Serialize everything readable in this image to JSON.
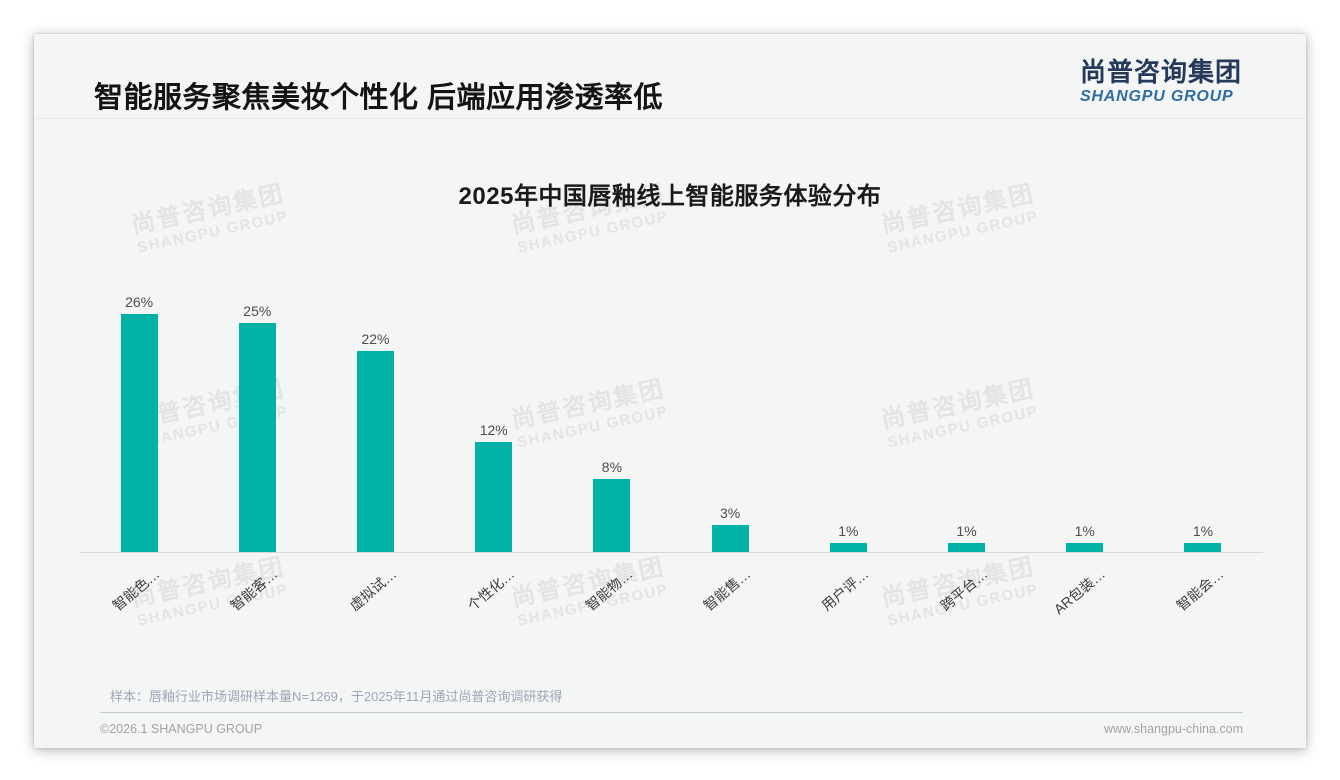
{
  "header": {
    "title": "智能服务聚焦美妆个性化 后端应用渗透率低",
    "logo_cn": "尚普咨询集团",
    "logo_en": "SHANGPU GROUP"
  },
  "watermark": {
    "cn": "尚普咨询集团",
    "en": "SHANGPU GROUP"
  },
  "chart_data": {
    "type": "bar",
    "title": "2025年中国唇釉线上智能服务体验分布",
    "categories": [
      "智能色…",
      "智能客…",
      "虚拟试…",
      "个性化…",
      "智能物…",
      "智能售…",
      "用户评…",
      "跨平台…",
      "AR包装…",
      "智能会…"
    ],
    "values": [
      26,
      25,
      22,
      12,
      8,
      3,
      1,
      1,
      1,
      1
    ],
    "value_labels": [
      "26%",
      "25%",
      "22%",
      "12%",
      "8%",
      "3%",
      "1%",
      "1%",
      "1%",
      "1%"
    ],
    "bar_color": "#00b2a5",
    "xlabel": "",
    "ylabel": "",
    "ylim": [
      0,
      28
    ],
    "grid": false,
    "legend_position": "none",
    "x_label_rotation_deg": 40
  },
  "footnote": "样本：唇釉行业市场调研样本量N=1269，于2025年11月通过尚普咨询调研获得",
  "footer": {
    "left": "©2026.1 SHANGPU GROUP",
    "right": "www.shangpu-china.com"
  }
}
